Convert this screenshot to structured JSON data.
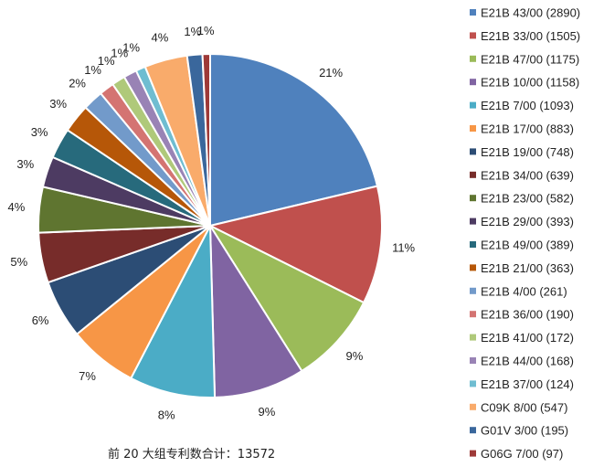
{
  "chart_data": {
    "type": "pie",
    "title": "",
    "footer": "前 20 大组专利数合计：13572",
    "slices": [
      {
        "label": "E21B 43/00",
        "value": 2890,
        "legend": "E21B 43/00  (2890)",
        "pct_label": "21%",
        "color": "#4F81BD"
      },
      {
        "label": "E21B 33/00",
        "value": 1505,
        "legend": "E21B 33/00  (1505)",
        "pct_label": "11%",
        "color": "#C0504D"
      },
      {
        "label": "E21B 47/00",
        "value": 1175,
        "legend": "E21B 47/00  (1175)",
        "pct_label": "9%",
        "color": "#9BBB59"
      },
      {
        "label": "E21B 10/00",
        "value": 1158,
        "legend": "E21B 10/00  (1158)",
        "pct_label": "9%",
        "color": "#8064A2"
      },
      {
        "label": "E21B 7/00",
        "value": 1093,
        "legend": "E21B 7/00  (1093)",
        "pct_label": "8%",
        "color": "#4BACC6"
      },
      {
        "label": "E21B 17/00",
        "value": 883,
        "legend": "E21B 17/00  (883)",
        "pct_label": "7%",
        "color": "#F79646"
      },
      {
        "label": "E21B 19/00",
        "value": 748,
        "legend": "E21B 19/00  (748)",
        "pct_label": "6%",
        "color": "#2C4D75"
      },
      {
        "label": "E21B 34/00",
        "value": 639,
        "legend": "E21B 34/00  (639)",
        "pct_label": "5%",
        "color": "#772C2A"
      },
      {
        "label": "E21B 23/00",
        "value": 582,
        "legend": "E21B 23/00  (582)",
        "pct_label": "4%",
        "color": "#5F7530"
      },
      {
        "label": "E21B 29/00",
        "value": 393,
        "legend": "E21B 29/00  (393)",
        "pct_label": "3%",
        "color": "#4D3B62"
      },
      {
        "label": "E21B 49/00",
        "value": 389,
        "legend": "E21B 49/00  (389)",
        "pct_label": "3%",
        "color": "#276A7C"
      },
      {
        "label": "E21B 21/00",
        "value": 363,
        "legend": "E21B 21/00  (363)",
        "pct_label": "3%",
        "color": "#B65708"
      },
      {
        "label": "E21B 4/00",
        "value": 261,
        "legend": "E21B 4/00  (261)",
        "pct_label": "2%",
        "color": "#729ACA"
      },
      {
        "label": "E21B 36/00",
        "value": 190,
        "legend": "E21B 36/00  (190)",
        "pct_label": "1%",
        "color": "#D47472"
      },
      {
        "label": "E21B 41/00",
        "value": 172,
        "legend": "E21B 41/00  (172)",
        "pct_label": "1%",
        "color": "#AFC97A"
      },
      {
        "label": "E21B 44/00",
        "value": 168,
        "legend": "E21B 44/00  (168)",
        "pct_label": "1%",
        "color": "#9983B5"
      },
      {
        "label": "E21B 37/00",
        "value": 124,
        "legend": "E21B 37/00  (124)",
        "pct_label": "1%",
        "color": "#6FBDD1"
      },
      {
        "label": "C09K 8/00",
        "value": 547,
        "legend": "C09K 8/00  (547)",
        "pct_label": "4%",
        "color": "#F9AB6B"
      },
      {
        "label": "G01V 3/00",
        "value": 195,
        "legend": "G01V 3/00  (195)",
        "pct_label": "1%",
        "color": "#3A679C"
      },
      {
        "label": "G06G 7/00",
        "value": 97,
        "legend": "G06G 7/00  (97)",
        "pct_label": "1%",
        "color": "#9E3A38"
      }
    ],
    "legend_position": "right",
    "start_angle": "12 o'clock",
    "direction": "clockwise"
  }
}
